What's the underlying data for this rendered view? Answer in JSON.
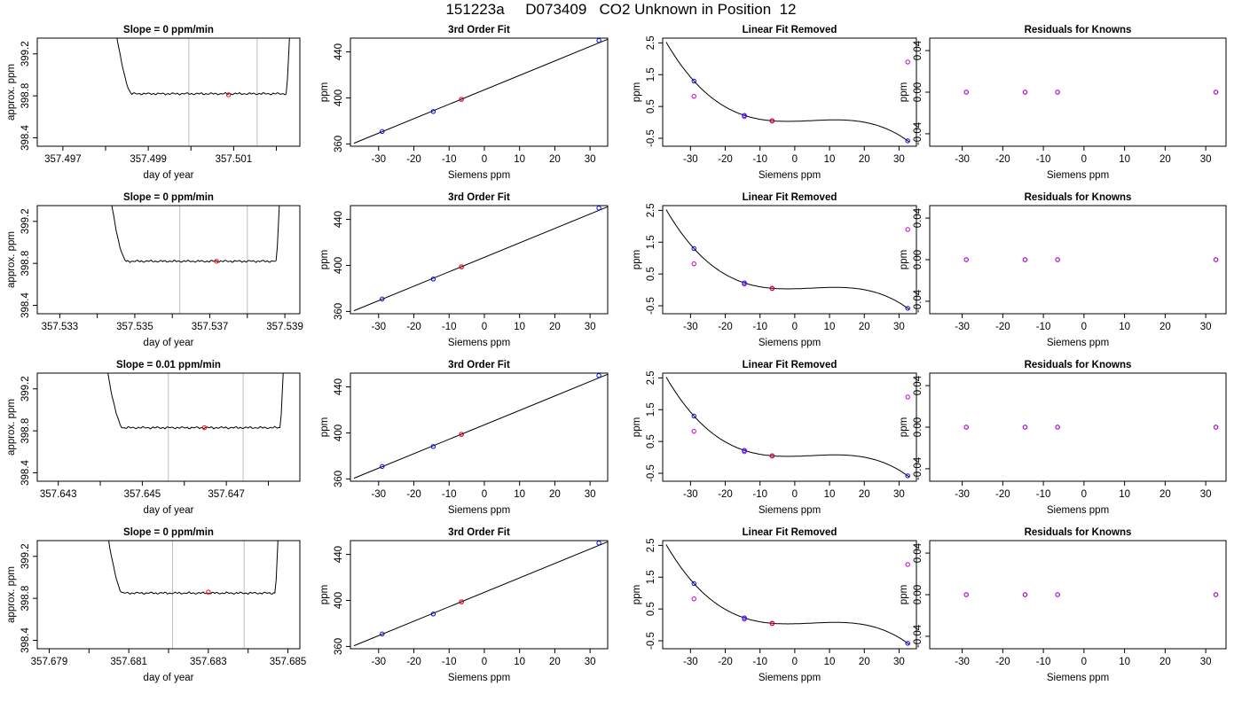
{
  "title": "151223a     D073409   CO2 Unknown in Position  12",
  "colors": {
    "line": "#000000",
    "known": "#0000ff",
    "unknown": "#ff0000",
    "linfit": "#cc00cc",
    "refline": "#bebebe"
  },
  "panel_titles": {
    "fit": "3rd Order Fit",
    "linear_removed": "Linear Fit Removed",
    "residuals": "Residuals for Knowns"
  },
  "axis_labels": {
    "trace_x": "day of year",
    "trace_y": "approx. ppm",
    "fit_x": "Siemens ppm",
    "fit_y": "ppm",
    "lin_x": "Siemens ppm",
    "lin_y": "ppm",
    "res_x": "Siemens ppm",
    "res_y": "ppm"
  },
  "chart_data": {
    "shared": {
      "known_x": [
        -29,
        -14.5,
        -6.5,
        32.5
      ],
      "unknown_x": -6.5,
      "fit": {
        "type": "scatter",
        "xlim": [
          -38,
          35
        ],
        "ylim": [
          358,
          452
        ],
        "yticks": [
          360,
          400,
          440
        ],
        "xticks": [
          -30,
          -20,
          -10,
          0,
          10,
          20,
          30
        ],
        "known_y": [
          370.8,
          388.2,
          398.8,
          449.9
        ],
        "unknown_y": 398.8,
        "curve": {
          "x": [
            -37,
            35
          ],
          "y": [
            360.6,
            451
          ]
        }
      },
      "linear_removed": {
        "type": "scatter",
        "xlim": [
          -38,
          35
        ],
        "ylim": [
          -0.75,
          2.65
        ],
        "yticks": [
          -0.5,
          0.5,
          1.5,
          2.5
        ],
        "ytick_labels": [
          "-0.5",
          "0.5",
          "1.5",
          "2.5"
        ],
        "xticks": [
          -30,
          -20,
          -10,
          0,
          10,
          20,
          30
        ],
        "known_y": [
          1.3,
          0.22,
          0.05,
          -0.58
        ],
        "unknown_y": 0.05,
        "linear_fit_y": [
          0.82,
          0.18,
          0.04,
          1.9
        ]
      },
      "residuals": {
        "type": "scatter",
        "xlim": [
          -38,
          35
        ],
        "ylim": [
          -0.052,
          0.052
        ],
        "yticks": [
          -0.04,
          0.0,
          0.04
        ],
        "ytick_labels": [
          "-0.04",
          "0.00",
          "0.04"
        ],
        "xticks": [
          -30,
          -20,
          -10,
          0,
          10,
          20,
          30
        ],
        "known_y": [
          0,
          0,
          0,
          0
        ]
      }
    },
    "rows": [
      {
        "slope_label": "Slope =  0  ppm/min",
        "trace": {
          "type": "line",
          "xlim": [
            357.4964,
            357.50255
          ],
          "ylim": [
            398.32,
            399.35
          ],
          "xticks": [
            357.497,
            357.498,
            357.499,
            357.5,
            357.501,
            357.502
          ],
          "xtick_labels": [
            "357.497",
            "",
            "357.499",
            "",
            "357.501",
            ""
          ],
          "yticks": [
            398.4,
            398.8,
            399.2
          ],
          "ytick_labels": [
            "398.4",
            "398.8",
            "399.2"
          ],
          "start": 357.4981,
          "end": 357.50235,
          "level": 398.82,
          "refline_a": 357.49995,
          "refline_b": 357.50155,
          "unknown_x": 357.50088,
          "unknown_y": 398.81
        }
      },
      {
        "slope_label": "Slope =  0  ppm/min",
        "trace": {
          "type": "line",
          "xlim": [
            357.5324,
            357.5394
          ],
          "ylim": [
            398.32,
            399.35
          ],
          "xticks": [
            357.533,
            357.534,
            357.535,
            357.536,
            357.537,
            357.538,
            357.539
          ],
          "xtick_labels": [
            "357.533",
            "",
            "357.535",
            "",
            "357.537",
            "",
            "357.539"
          ],
          "yticks": [
            398.4,
            398.8,
            399.2
          ],
          "ytick_labels": [
            "398.4",
            "398.8",
            "399.2"
          ],
          "start": 357.5342,
          "end": 357.5389,
          "level": 398.82,
          "refline_a": 357.5362,
          "refline_b": 357.538,
          "unknown_x": 357.53718,
          "unknown_y": 398.82
        }
      },
      {
        "slope_label": "Slope =  0.01  ppm/min",
        "trace": {
          "type": "line",
          "xlim": [
            357.6425,
            357.64875
          ],
          "ylim": [
            398.32,
            399.35
          ],
          "xticks": [
            357.643,
            357.644,
            357.645,
            357.646,
            357.647,
            357.648
          ],
          "xtick_labels": [
            "357.643",
            "",
            "357.645",
            "",
            "357.647",
            ""
          ],
          "yticks": [
            398.4,
            398.8,
            399.2
          ],
          "ytick_labels": [
            "398.4",
            "398.8",
            "399.2"
          ],
          "start": 357.644,
          "end": 357.6484,
          "level": 398.83,
          "refline_a": 357.64562,
          "refline_b": 357.6474,
          "unknown_x": 357.64648,
          "unknown_y": 398.83
        }
      },
      {
        "slope_label": "Slope =  0  ppm/min",
        "trace": {
          "type": "line",
          "xlim": [
            357.6787,
            357.6853
          ],
          "ylim": [
            398.32,
            399.35
          ],
          "xticks": [
            357.679,
            357.68,
            357.681,
            357.682,
            357.683,
            357.684,
            357.685
          ],
          "xtick_labels": [
            "357.679",
            "",
            "357.681",
            "",
            "357.683",
            "",
            "357.685"
          ],
          "yticks": [
            398.4,
            398.8,
            399.2
          ],
          "ytick_labels": [
            "398.4",
            "398.8",
            "399.2"
          ],
          "start": 357.6803,
          "end": 357.6848,
          "level": 398.85,
          "refline_a": 357.6821,
          "refline_b": 357.6839,
          "unknown_x": 357.683,
          "unknown_y": 398.86
        }
      }
    ]
  }
}
